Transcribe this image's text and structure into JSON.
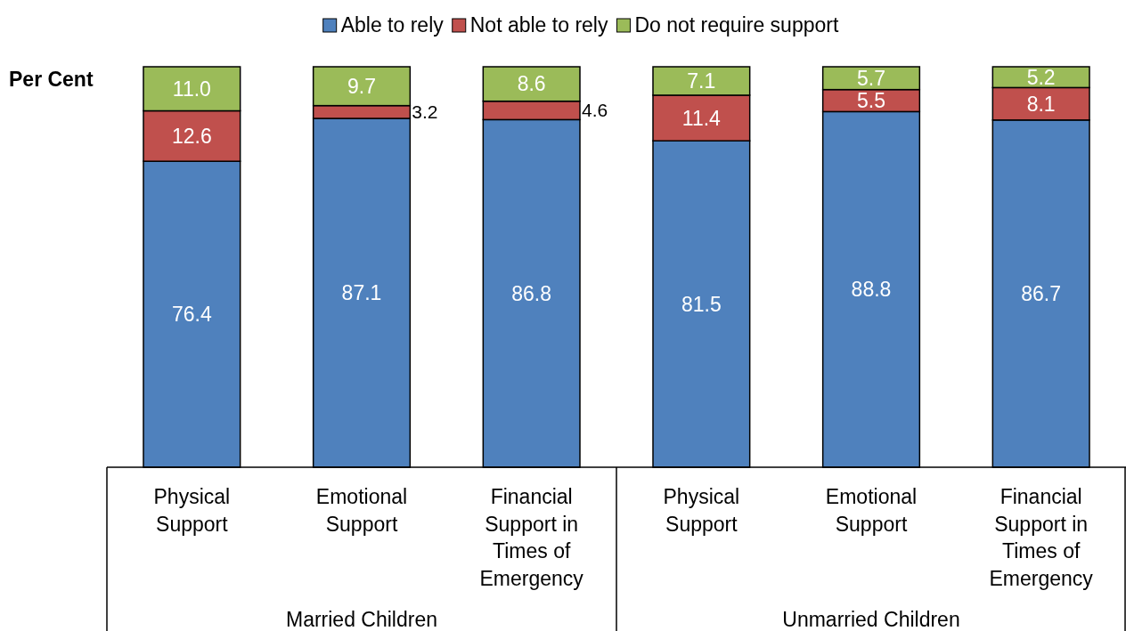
{
  "chart_data": {
    "type": "bar",
    "stacked": true,
    "relative": false,
    "ylabel": "Per Cent",
    "legend": "top",
    "categories": [
      "Physical Support",
      "Emotional Support",
      "Financial Support in Times of Emergency",
      "Physical Support",
      "Emotional Support",
      "Financial Support in Times of Emergency"
    ],
    "series": [
      {
        "name": "Able to rely",
        "color": "#4f81bd",
        "values": [
          76.4,
          87.1,
          86.8,
          81.5,
          88.8,
          86.7
        ],
        "value_labels": [
          "76.4",
          "87.1",
          "86.8",
          "81.5",
          "88.8",
          "86.7"
        ]
      },
      {
        "name": "Not able to rely",
        "color": "#c0504d",
        "values": [
          12.6,
          3.2,
          4.6,
          11.4,
          5.5,
          8.1
        ],
        "value_labels": [
          "12.6",
          "3.2",
          "4.6",
          "11.4",
          "5.5",
          "8.1"
        ]
      },
      {
        "name": "Do not require support",
        "color": "#9bbb59",
        "values": [
          11.0,
          9.7,
          8.6,
          7.1,
          5.7,
          5.2
        ],
        "value_labels": [
          "11.0",
          "9.7",
          "8.6",
          "7.1",
          "5.7",
          "5.2"
        ]
      }
    ],
    "annotations": [
      "Married Children",
      "Unmarried Children"
    ]
  }
}
